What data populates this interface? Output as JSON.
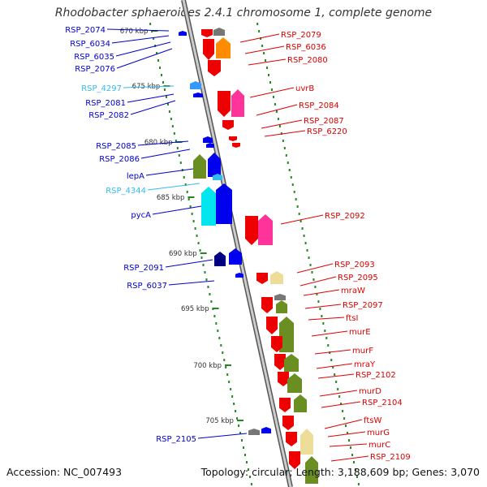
{
  "title": "Rhodobacter sphaeroides 2.4.1 chromosome 1, complete genome",
  "footer": {
    "accession": "Accession: NC_007493",
    "summary": "Topology: circular; Length: 3,188,609 bp; Genes: 3,070"
  },
  "colors": {
    "label_blue": "#0000cc",
    "label_cyan": "#33bbee",
    "label_red": "#dd0000",
    "backbone": "#999999",
    "tick_green": "#228822"
  },
  "ticks": [
    {
      "kbp": 670,
      "label": "670 kbp"
    },
    {
      "kbp": 675,
      "label": "675 kbp"
    },
    {
      "kbp": 680,
      "label": "680 kbp"
    },
    {
      "kbp": 685,
      "label": "685 kbp"
    },
    {
      "kbp": 690,
      "label": "690 kbp"
    },
    {
      "kbp": 695,
      "label": "695 kbp"
    },
    {
      "kbp": 700,
      "label": "700 kbp"
    },
    {
      "kbp": 705,
      "label": "705 kbp"
    }
  ],
  "left_labels": [
    {
      "text": "RSP_2074",
      "color": "blue"
    },
    {
      "text": "RSP_6034",
      "color": "blue"
    },
    {
      "text": "RSP_6035",
      "color": "blue"
    },
    {
      "text": "RSP_2076",
      "color": "blue"
    },
    {
      "text": "RSP_4297",
      "color": "cyan"
    },
    {
      "text": "RSP_2081",
      "color": "blue"
    },
    {
      "text": "RSP_2082",
      "color": "blue"
    },
    {
      "text": "RSP_2085",
      "color": "blue"
    },
    {
      "text": "RSP_2086",
      "color": "blue"
    },
    {
      "text": "lepA",
      "color": "blue"
    },
    {
      "text": "RSP_4344",
      "color": "cyan"
    },
    {
      "text": "pycA",
      "color": "blue"
    },
    {
      "text": "RSP_2091",
      "color": "blue"
    },
    {
      "text": "RSP_6037",
      "color": "blue"
    },
    {
      "text": "RSP_2105",
      "color": "blue"
    }
  ],
  "right_labels": [
    "RSP_2079",
    "RSP_6036",
    "RSP_2080",
    "uvrB",
    "RSP_2084",
    "RSP_2087",
    "RSP_6220",
    "RSP_2092",
    "RSP_2093",
    "RSP_2095",
    "mraW",
    "RSP_2097",
    "ftsI",
    "murE",
    "murF",
    "mraY",
    "RSP_2102",
    "murD",
    "RSP_2104",
    "ftsW",
    "murG",
    "murC",
    "RSP_2109"
  ]
}
